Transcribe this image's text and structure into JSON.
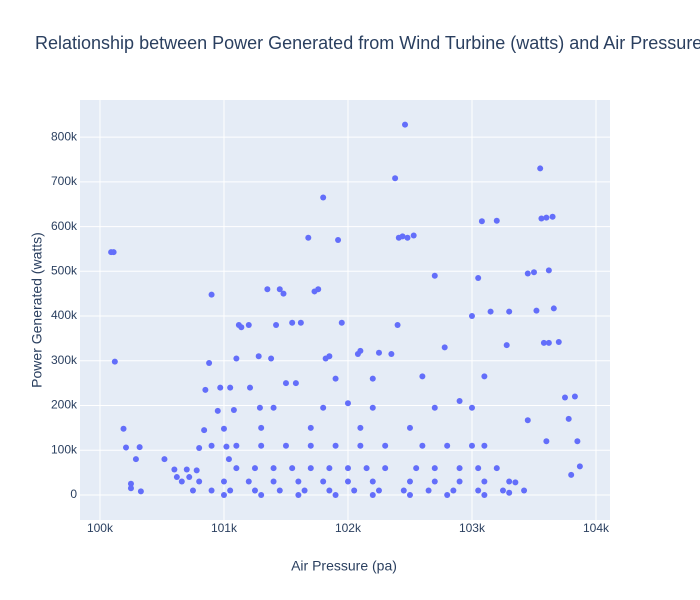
{
  "chart_data": {
    "type": "scatter",
    "title": "Relationship between Power Generated from Wind Turbine (watts) and Air Pressure (pa)",
    "x_label": "Air Pressure (pa)",
    "y_label": "Power Generated (watts)",
    "color": "#636efa",
    "grid": true,
    "xlim": [
      99839,
      104113
    ],
    "ylim": [
      -56000,
      883000
    ],
    "xticks": [
      {
        "value": 100000,
        "label": "100k"
      },
      {
        "value": 101000,
        "label": "101k"
      },
      {
        "value": 102000,
        "label": "102k"
      },
      {
        "value": 103000,
        "label": "103k"
      },
      {
        "value": 104000,
        "label": "104k"
      }
    ],
    "yticks": [
      0,
      {
        "value": 100000,
        "label": "100k"
      },
      {
        "value": 200000,
        "label": "200k"
      },
      {
        "value": 300000,
        "label": "300k"
      },
      {
        "value": 400000,
        "label": "400k"
      },
      {
        "value": 500000,
        "label": "500k"
      },
      {
        "value": 600000,
        "label": "600k"
      },
      {
        "value": 700000,
        "label": "700k"
      },
      {
        "value": 800000,
        "label": "800k"
      }
    ],
    "x": [
      100090,
      100110,
      100120,
      100190,
      100210,
      100250,
      100250,
      100290,
      100320,
      100330,
      100520,
      100600,
      100620,
      100660,
      100700,
      100720,
      100750,
      100780,
      100800,
      100840,
      100850,
      100880,
      100900,
      100950,
      100970,
      101000,
      101020,
      101040,
      101050,
      101080,
      101100,
      101120,
      101140,
      101200,
      101210,
      101280,
      101290,
      101350,
      101380,
      101420,
      101450,
      101480,
      101500,
      101550,
      101580,
      101620,
      101680,
      101730,
      101760,
      101800,
      101820,
      101850,
      101900,
      101920,
      101950,
      102000,
      102080,
      102100,
      102200,
      102250,
      102350,
      102380,
      102400,
      102410,
      102440,
      102460,
      102480,
      102530,
      102600,
      102700,
      102780,
      102900,
      103000,
      103050,
      103080,
      103100,
      103150,
      103200,
      103300,
      103280,
      103450,
      103500,
      103520,
      103550,
      103560,
      103600,
      103620,
      103650,
      103660,
      103580,
      103620,
      103700,
      103750,
      103780,
      103830,
      103850,
      103870,
      103800,
      103600,
      103450,
      103420,
      103350,
      103300,
      100900,
      101100,
      101300,
      101500,
      101700,
      101900,
      102100,
      102300,
      102600,
      102800,
      103000,
      103100,
      101100,
      101250,
      101400,
      101550,
      101700,
      101850,
      102000,
      102150,
      102300,
      102550,
      102700,
      102900,
      103050,
      103200,
      100800,
      101000,
      101200,
      101400,
      101600,
      101800,
      102000,
      102200,
      102500,
      102700,
      102900,
      103100,
      103300,
      100900,
      101050,
      101250,
      101450,
      101650,
      101850,
      102050,
      102250,
      102450,
      102650,
      102850,
      103050,
      103250,
      101000,
      101300,
      101600,
      101900,
      102200,
      102500,
      102800,
      103100,
      101300,
      101700,
      102100,
      102500,
      101400,
      101800,
      102200,
      102700,
      103000
    ],
    "values": [
      543000,
      543000,
      298000,
      148000,
      106000,
      25000,
      15000,
      80000,
      107000,
      8000,
      80000,
      57000,
      40000,
      30000,
      57000,
      40000,
      10000,
      55000,
      105000,
      145000,
      235000,
      295000,
      448000,
      188000,
      240000,
      148000,
      108000,
      80000,
      240000,
      190000,
      305000,
      380000,
      375000,
      380000,
      240000,
      310000,
      195000,
      460000,
      305000,
      380000,
      460000,
      450000,
      250000,
      385000,
      250000,
      385000,
      575000,
      455000,
      460000,
      665000,
      305000,
      310000,
      260000,
      570000,
      385000,
      205000,
      315000,
      322000,
      260000,
      318000,
      315000,
      708000,
      380000,
      575000,
      578000,
      828000,
      575000,
      580000,
      265000,
      490000,
      330000,
      210000,
      400000,
      485000,
      612000,
      265000,
      410000,
      613000,
      410000,
      335000,
      495000,
      498000,
      412000,
      730000,
      618000,
      620000,
      502000,
      622000,
      417000,
      340000,
      340000,
      342000,
      218000,
      170000,
      220000,
      120000,
      64000,
      45000,
      120000,
      167000,
      10000,
      28000,
      5000,
      110000,
      110000,
      110000,
      110000,
      110000,
      110000,
      110000,
      110000,
      110000,
      110000,
      110000,
      110000,
      60000,
      60000,
      60000,
      60000,
      60000,
      60000,
      60000,
      60000,
      60000,
      60000,
      60000,
      60000,
      60000,
      60000,
      30000,
      30000,
      30000,
      30000,
      30000,
      30000,
      30000,
      30000,
      30000,
      30000,
      30000,
      30000,
      30000,
      10000,
      10000,
      10000,
      10000,
      10000,
      10000,
      10000,
      10000,
      10000,
      10000,
      10000,
      10000,
      10000,
      0,
      0,
      0,
      0,
      0,
      0,
      0,
      0,
      150000,
      150000,
      150000,
      150000,
      195000,
      195000,
      195000,
      195000,
      195000
    ]
  }
}
